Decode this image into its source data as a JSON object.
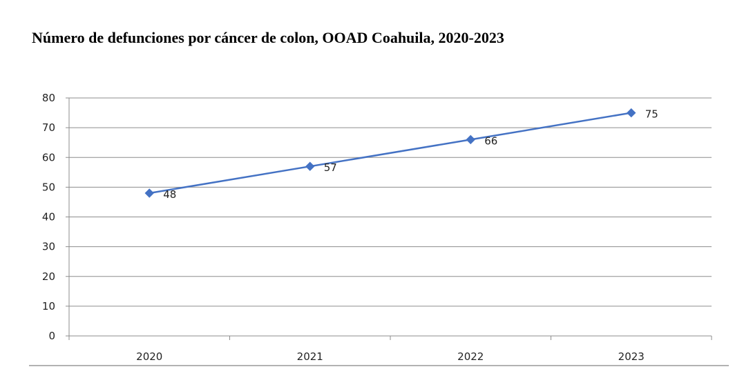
{
  "title": "Número de defunciones por cáncer de colon, OOAD Coahuila, 2020-2023",
  "colors": {
    "series": "#4472C4",
    "gridline": "#8c8c8c",
    "axis": "#8c8c8c",
    "text": "#222222",
    "bottom_rule": "#666666"
  },
  "chart_data": {
    "type": "line",
    "categories": [
      "2020",
      "2021",
      "2022",
      "2023"
    ],
    "series": [
      {
        "values": [
          48,
          57,
          66,
          75
        ],
        "marker": "diamond",
        "data_labels": [
          "48",
          "57",
          "66",
          "75"
        ]
      }
    ],
    "ylim": [
      0,
      80
    ],
    "yticks": [
      0,
      10,
      20,
      30,
      40,
      50,
      60,
      70,
      80
    ],
    "ytick_labels": [
      "0",
      "10",
      "20",
      "30",
      "40",
      "50",
      "60",
      "70",
      "80"
    ],
    "grid": true,
    "legend": "none",
    "xlabel": "",
    "ylabel": ""
  }
}
